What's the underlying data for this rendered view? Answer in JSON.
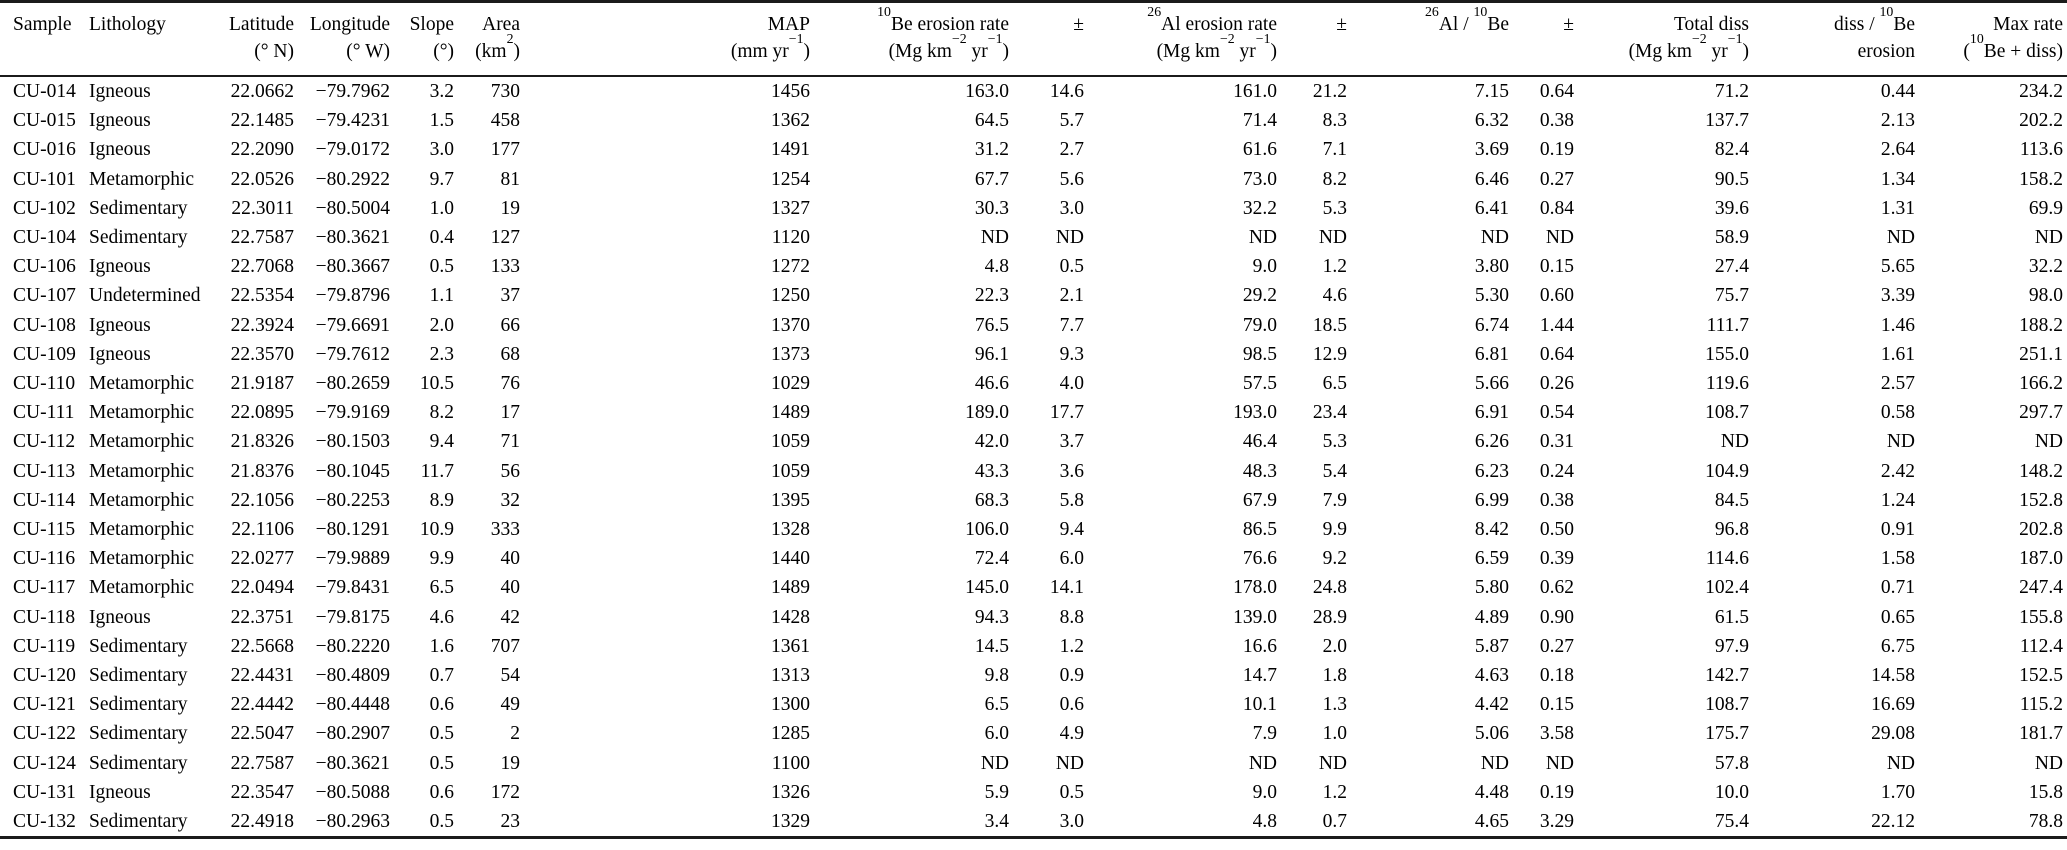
{
  "page": {
    "background_color": "#ffffff",
    "text_color": "#000000",
    "rule_color": "#1b1b1b",
    "no_data_label": "ND"
  },
  "table": {
    "columns": [
      {
        "id": "sample",
        "label": [
          "Sample"
        ],
        "unit": []
      },
      {
        "id": "lithology",
        "label": [
          "Lithology"
        ],
        "unit": []
      },
      {
        "id": "latitude",
        "label": [
          "Latitude"
        ],
        "unit": [
          "(° N)"
        ]
      },
      {
        "id": "longitude",
        "label": [
          "Longitude"
        ],
        "unit": [
          "(° W)"
        ]
      },
      {
        "id": "slope",
        "label": [
          "Slope"
        ],
        "unit": [
          "(°)"
        ]
      },
      {
        "id": "area",
        "label": [
          "Area"
        ],
        "unit": [
          "(km",
          {
            "sup": "2"
          },
          ")"
        ]
      },
      {
        "id": "map",
        "label": [
          "MAP"
        ],
        "unit": [
          "(mm yr",
          {
            "sup": "−1"
          },
          ")"
        ]
      },
      {
        "id": "be10-erosion-rate",
        "label": [
          {
            "sup": "10"
          },
          "Be erosion rate"
        ],
        "unit": [
          "(Mg km",
          {
            "sup": "−2"
          },
          " yr",
          {
            "sup": "−1"
          },
          ")"
        ]
      },
      {
        "id": "be10-uncertainty",
        "label": [
          "±"
        ],
        "unit": []
      },
      {
        "id": "al26-erosion-rate",
        "label": [
          {
            "sup": "26"
          },
          "Al erosion rate"
        ],
        "unit": [
          "(Mg km",
          {
            "sup": "−2"
          },
          " yr",
          {
            "sup": "−1"
          },
          ")"
        ]
      },
      {
        "id": "al26-uncertainty",
        "label": [
          "±"
        ],
        "unit": []
      },
      {
        "id": "al26-be10-ratio",
        "label": [
          {
            "sup": "26"
          },
          "Al / ",
          {
            "sup": "10"
          },
          "Be"
        ],
        "unit": []
      },
      {
        "id": "ratio-uncertainty",
        "label": [
          "±"
        ],
        "unit": []
      },
      {
        "id": "total-diss",
        "label": [
          "Total diss"
        ],
        "unit": [
          "(Mg km",
          {
            "sup": "−2"
          },
          " yr",
          {
            "sup": "−1"
          },
          ")"
        ]
      },
      {
        "id": "diss-be10-ratio",
        "label": [
          "diss / ",
          {
            "sup": "10"
          },
          "Be"
        ],
        "unit": [
          "erosion"
        ]
      },
      {
        "id": "max-rate",
        "label": [
          "Max rate"
        ],
        "unit": [
          "(",
          {
            "sup": "10"
          },
          "Be + diss)"
        ]
      }
    ],
    "rows": [
      [
        "CU-014",
        "Igneous",
        "22.0662",
        "−79.7962",
        "3.2",
        "730",
        "1456",
        "163.0",
        "14.6",
        "161.0",
        "21.2",
        "7.15",
        "0.64",
        "71.2",
        "0.44",
        "234.2"
      ],
      [
        "CU-015",
        "Igneous",
        "22.1485",
        "−79.4231",
        "1.5",
        "458",
        "1362",
        "64.5",
        "5.7",
        "71.4",
        "8.3",
        "6.32",
        "0.38",
        "137.7",
        "2.13",
        "202.2"
      ],
      [
        "CU-016",
        "Igneous",
        "22.2090",
        "−79.0172",
        "3.0",
        "177",
        "1491",
        "31.2",
        "2.7",
        "61.6",
        "7.1",
        "3.69",
        "0.19",
        "82.4",
        "2.64",
        "113.6"
      ],
      [
        "CU-101",
        "Metamorphic",
        "22.0526",
        "−80.2922",
        "9.7",
        "81",
        "1254",
        "67.7",
        "5.6",
        "73.0",
        "8.2",
        "6.46",
        "0.27",
        "90.5",
        "1.34",
        "158.2"
      ],
      [
        "CU-102",
        "Sedimentary",
        "22.3011",
        "−80.5004",
        "1.0",
        "19",
        "1327",
        "30.3",
        "3.0",
        "32.2",
        "5.3",
        "6.41",
        "0.84",
        "39.6",
        "1.31",
        "69.9"
      ],
      [
        "CU-104",
        "Sedimentary",
        "22.7587",
        "−80.3621",
        "0.4",
        "127",
        "1120",
        "ND",
        "ND",
        "ND",
        "ND",
        "ND",
        "ND",
        "58.9",
        "ND",
        "ND"
      ],
      [
        "CU-106",
        "Igneous",
        "22.7068",
        "−80.3667",
        "0.5",
        "133",
        "1272",
        "4.8",
        "0.5",
        "9.0",
        "1.2",
        "3.80",
        "0.15",
        "27.4",
        "5.65",
        "32.2"
      ],
      [
        "CU-107",
        "Undetermined",
        "22.5354",
        "−79.8796",
        "1.1",
        "37",
        "1250",
        "22.3",
        "2.1",
        "29.2",
        "4.6",
        "5.30",
        "0.60",
        "75.7",
        "3.39",
        "98.0"
      ],
      [
        "CU-108",
        "Igneous",
        "22.3924",
        "−79.6691",
        "2.0",
        "66",
        "1370",
        "76.5",
        "7.7",
        "79.0",
        "18.5",
        "6.74",
        "1.44",
        "111.7",
        "1.46",
        "188.2"
      ],
      [
        "CU-109",
        "Igneous",
        "22.3570",
        "−79.7612",
        "2.3",
        "68",
        "1373",
        "96.1",
        "9.3",
        "98.5",
        "12.9",
        "6.81",
        "0.64",
        "155.0",
        "1.61",
        "251.1"
      ],
      [
        "CU-110",
        "Metamorphic",
        "21.9187",
        "−80.2659",
        "10.5",
        "76",
        "1029",
        "46.6",
        "4.0",
        "57.5",
        "6.5",
        "5.66",
        "0.26",
        "119.6",
        "2.57",
        "166.2"
      ],
      [
        "CU-111",
        "Metamorphic",
        "22.0895",
        "−79.9169",
        "8.2",
        "17",
        "1489",
        "189.0",
        "17.7",
        "193.0",
        "23.4",
        "6.91",
        "0.54",
        "108.7",
        "0.58",
        "297.7"
      ],
      [
        "CU-112",
        "Metamorphic",
        "21.8326",
        "−80.1503",
        "9.4",
        "71",
        "1059",
        "42.0",
        "3.7",
        "46.4",
        "5.3",
        "6.26",
        "0.31",
        "ND",
        "ND",
        "ND"
      ],
      [
        "CU-113",
        "Metamorphic",
        "21.8376",
        "−80.1045",
        "11.7",
        "56",
        "1059",
        "43.3",
        "3.6",
        "48.3",
        "5.4",
        "6.23",
        "0.24",
        "104.9",
        "2.42",
        "148.2"
      ],
      [
        "CU-114",
        "Metamorphic",
        "22.1056",
        "−80.2253",
        "8.9",
        "32",
        "1395",
        "68.3",
        "5.8",
        "67.9",
        "7.9",
        "6.99",
        "0.38",
        "84.5",
        "1.24",
        "152.8"
      ],
      [
        "CU-115",
        "Metamorphic",
        "22.1106",
        "−80.1291",
        "10.9",
        "333",
        "1328",
        "106.0",
        "9.4",
        "86.5",
        "9.9",
        "8.42",
        "0.50",
        "96.8",
        "0.91",
        "202.8"
      ],
      [
        "CU-116",
        "Metamorphic",
        "22.0277",
        "−79.9889",
        "9.9",
        "40",
        "1440",
        "72.4",
        "6.0",
        "76.6",
        "9.2",
        "6.59",
        "0.39",
        "114.6",
        "1.58",
        "187.0"
      ],
      [
        "CU-117",
        "Metamorphic",
        "22.0494",
        "−79.8431",
        "6.5",
        "40",
        "1489",
        "145.0",
        "14.1",
        "178.0",
        "24.8",
        "5.80",
        "0.62",
        "102.4",
        "0.71",
        "247.4"
      ],
      [
        "CU-118",
        "Igneous",
        "22.3751",
        "−79.8175",
        "4.6",
        "42",
        "1428",
        "94.3",
        "8.8",
        "139.0",
        "28.9",
        "4.89",
        "0.90",
        "61.5",
        "0.65",
        "155.8"
      ],
      [
        "CU-119",
        "Sedimentary",
        "22.5668",
        "−80.2220",
        "1.6",
        "707",
        "1361",
        "14.5",
        "1.2",
        "16.6",
        "2.0",
        "5.87",
        "0.27",
        "97.9",
        "6.75",
        "112.4"
      ],
      [
        "CU-120",
        "Sedimentary",
        "22.4431",
        "−80.4809",
        "0.7",
        "54",
        "1313",
        "9.8",
        "0.9",
        "14.7",
        "1.8",
        "4.63",
        "0.18",
        "142.7",
        "14.58",
        "152.5"
      ],
      [
        "CU-121",
        "Sedimentary",
        "22.4442",
        "−80.4448",
        "0.6",
        "49",
        "1300",
        "6.5",
        "0.6",
        "10.1",
        "1.3",
        "4.42",
        "0.15",
        "108.7",
        "16.69",
        "115.2"
      ],
      [
        "CU-122",
        "Sedimentary",
        "22.5047",
        "−80.2907",
        "0.5",
        "2",
        "1285",
        "6.0",
        "4.9",
        "7.9",
        "1.0",
        "5.06",
        "3.58",
        "175.7",
        "29.08",
        "181.7"
      ],
      [
        "CU-124",
        "Sedimentary",
        "22.7587",
        "−80.3621",
        "0.5",
        "19",
        "1100",
        "ND",
        "ND",
        "ND",
        "ND",
        "ND",
        "ND",
        "57.8",
        "ND",
        "ND"
      ],
      [
        "CU-131",
        "Igneous",
        "22.3547",
        "−80.5088",
        "0.6",
        "172",
        "1326",
        "5.9",
        "0.5",
        "9.0",
        "1.2",
        "4.48",
        "0.19",
        "10.0",
        "1.70",
        "15.8"
      ],
      [
        "CU-132",
        "Sedimentary",
        "22.4918",
        "−80.2963",
        "0.5",
        "23",
        "1329",
        "3.4",
        "3.0",
        "4.8",
        "0.7",
        "4.65",
        "3.29",
        "75.4",
        "22.12",
        "78.8"
      ]
    ]
  }
}
